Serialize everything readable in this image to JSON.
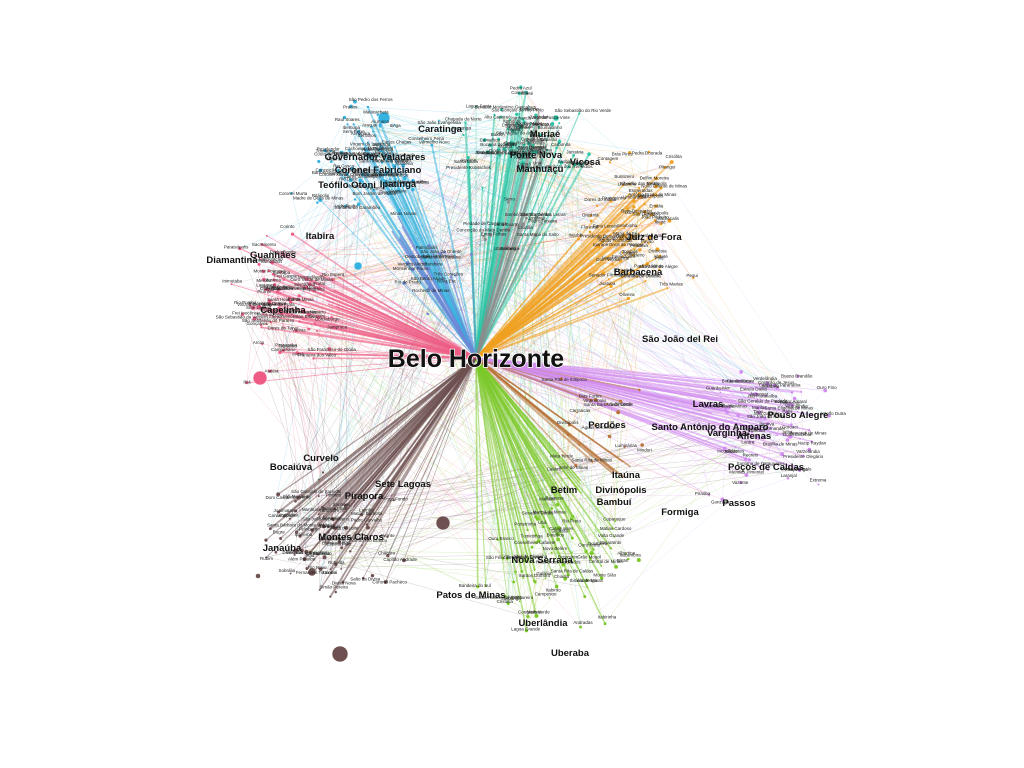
{
  "graph": {
    "hub": {
      "label": "Belo Horizonte"
    },
    "region_colors": {
      "cyan": "#36b2e0",
      "teal": "#2ec4a6",
      "orange": "#f0a020",
      "pink": "#ee5c85",
      "purple": "#d28df0",
      "green": "#7cc92a",
      "brown": "#6e5050",
      "gray": "#8c8c8c",
      "blue": "#6e86d6",
      "rust": "#b8733a"
    },
    "major_labels": [
      {
        "text": "Governador Valadares",
        "color": "cyan"
      },
      {
        "text": "Coronel Fabriciano",
        "color": "cyan"
      },
      {
        "text": "Ipatinga",
        "color": "cyan"
      },
      {
        "text": "Teófilo Otoni",
        "color": "cyan"
      },
      {
        "text": "Juiz de Fora",
        "color": "orange"
      },
      {
        "text": "Barbacena",
        "color": "orange"
      },
      {
        "text": "São João del Rei",
        "color": "orange"
      },
      {
        "text": "Muriaé",
        "color": "teal"
      },
      {
        "text": "Ponte Nova",
        "color": "teal"
      },
      {
        "text": "Manhuaçu",
        "color": "teal"
      },
      {
        "text": "Viçosa",
        "color": "teal"
      },
      {
        "text": "Caratinga",
        "color": "teal"
      },
      {
        "text": "Guanhães",
        "color": "pink"
      },
      {
        "text": "Capelinha",
        "color": "pink"
      },
      {
        "text": "Diamantina",
        "color": "pink"
      },
      {
        "text": "Curvelo",
        "color": "brown"
      },
      {
        "text": "Sete Lagoas",
        "color": "brown"
      },
      {
        "text": "Pirapora",
        "color": "brown"
      },
      {
        "text": "Montes Claros",
        "color": "brown"
      },
      {
        "text": "Bocaiúva",
        "color": "brown"
      },
      {
        "text": "Janaúba",
        "color": "brown"
      },
      {
        "text": "Itabira",
        "color": "pink"
      },
      {
        "text": "Betim",
        "color": "green"
      },
      {
        "text": "Divinópolis",
        "color": "green"
      },
      {
        "text": "Itaúna",
        "color": "green"
      },
      {
        "text": "Perdões",
        "color": "green"
      },
      {
        "text": "Bambuí",
        "color": "green"
      },
      {
        "text": "Formiga",
        "color": "green"
      },
      {
        "text": "Nova Serrana",
        "color": "green"
      },
      {
        "text": "Patos de Minas",
        "color": "green"
      },
      {
        "text": "Uberlândia",
        "color": "green"
      },
      {
        "text": "Uberaba",
        "color": "green"
      },
      {
        "text": "Lavras",
        "color": "purple"
      },
      {
        "text": "Varginha",
        "color": "purple"
      },
      {
        "text": "Alfenas",
        "color": "purple"
      },
      {
        "text": "Pouso Alegre",
        "color": "purple"
      },
      {
        "text": "Santo Antônio do Amparo",
        "color": "purple"
      },
      {
        "text": "Passos",
        "color": "purple"
      },
      {
        "text": "Poços de Caldas",
        "color": "purple"
      }
    ],
    "minor_labels": [
      "Mantena",
      "Santa Maria de Itabira",
      "Conselheiro Pena",
      "Aimorés",
      "Resplendor",
      "Nanuque",
      "Carlos Chagas",
      "Almenara",
      "Jequitinhonha",
      "Araçuaí",
      "Itaobim",
      "Pedra Azul",
      "Salinas",
      "Taiobeiras",
      "Rio Pardo de Minas",
      "Januária",
      "Manga",
      "São Francisco",
      "Unaí",
      "Paracatu",
      "João Pinheiro",
      "Buritizeiro",
      "Três Marias",
      "Abaeté",
      "Dores do Indaiá",
      "Luz",
      "Bom Despacho",
      "Pitangui",
      "Pará de Minas",
      "Oliveira",
      "Campo Belo",
      "Lagoa da Prata",
      "Arcos",
      "Piumhi",
      "Araxá",
      "Ibiá",
      "Sacramento",
      "Frutal",
      "Iturama",
      "Ituiutaba",
      "Monte Carmelo",
      "Patrocínio",
      "Coromandel",
      "Carmo do Paranaíba",
      "São Gotardo",
      "Rio Paranaíba",
      "Tiros",
      "Vazante",
      "Guarda-Mor",
      "Presidente Olegário",
      "Lagoa Grande",
      "Ouro Preto",
      "Mariana",
      "Itabirito",
      "Congonhas",
      "Conselheiro Lafaiete",
      "Ouro Branco",
      "Santos Dumont",
      "Ubá",
      "Cataguases",
      "Leopoldina",
      "Além Paraíba",
      "Visconde do Rio Branco",
      "Carangola",
      "Espera Feliz",
      "Manhumirim",
      "Lajinha",
      "Ipanema",
      "Inhapim",
      "Timóteo",
      "Santana do Paraíso",
      "João Monlevade",
      "Nova Era",
      "Itambé do Mato Dentro",
      "Conceição do Mato Dentro",
      "Serro",
      "Sabinópolis",
      "Virginópolis",
      "Peçanha",
      "São João Evangelista",
      "Malacacheta",
      "Itamarandiba",
      "Minas Novas",
      "Turmalina",
      "Santo Antônio do Itambé",
      "Gouveia",
      "Datas",
      "Couto de Magalhães de Minas",
      "Presidente Kubitschek",
      "Baldim",
      "Jaboticatubas",
      "Lagoa Santa",
      "Vespasiano",
      "Santa Luzia",
      "Sabará",
      "Caeté",
      "Nova Lima",
      "Brumadinho",
      "Ibirité",
      "Contagem",
      "Ribeirão das Neves",
      "Esmeraldas",
      "Igarapé",
      "Mateus Leme",
      "Juatuba",
      "Florestal",
      "Pequi",
      "Onça de Pitangui",
      "Papagaios",
      "Paraopeba",
      "Cordisburgo",
      "Inimutaba",
      "Corinto",
      "Lassance",
      "Várzea da Palma",
      "Jequitaí",
      "Francisco Dumont",
      "Engenheiro Navarro",
      "Coração de Jesus",
      "Brasília de Minas",
      "Mirabela",
      "Patis",
      "Japonvar",
      "Lontra",
      "São João da Ponte",
      "Varzelândia",
      "Verdelândia",
      "Jaíba",
      "Matias Cardoso",
      "Itacarambi",
      "Espinosa",
      "Mato Verde",
      "Porteirinha",
      "Riacho dos Machados",
      "Grão Mogol",
      "Itacambira",
      "Botumirim",
      "Cristália",
      "Josenópolis",
      "Padre Carvalho",
      "Fruta de Leite",
      "Novorizonte",
      "Rubelita",
      "Salto da Divisa",
      "Jacinto",
      "Rubim",
      "Joaíma",
      "Felisburgo",
      "Rio do Prado",
      "Palmópolis",
      "Bandeira",
      "Jordânia",
      "Santa Maria do Salto",
      "Divisópolis",
      "Mata Verde",
      "Águas Vermelhas",
      "Divisa Alegre",
      "Cachoeira de Pajeú",
      "Medina",
      "Comercinho",
      "Ponto dos Volantes",
      "Itinga",
      "Coronel Murta",
      "Virgem da Lapa",
      "Berilo",
      "Francisco Badaró",
      "Chapada do Norte",
      "Jenipapo de Minas",
      "Leme do Prado",
      "José Gonçalves de Minas",
      "Carbonita",
      "Senador Modestino Gonçalves",
      "Felício dos Santos",
      "São Gonçalo do Rio Preto",
      "Aricanduva",
      "Angelândia",
      "Setubinha",
      "Ladainha",
      "Poté",
      "Novo Oriente de Minas",
      "Pavão",
      "Crisólita",
      "Águas Formosas",
      "Bertópolis",
      "Umburatiba",
      "Machacalis",
      "Santa Helena de Minas",
      "Fronteira dos Vales",
      "Monte Formoso",
      "Ouro Verde de Minas",
      "Ataléia",
      "Frei Gaspar",
      "Itambacuri",
      "Campanário",
      "Jampruca",
      "Frei Inocêncio",
      "Marilac",
      "São Geraldo da Piedade",
      "Sardoá",
      "Coroaci",
      "Gonzaga",
      "Santa Efigênia de Minas",
      "Divinolândia de Minas",
      "Virgolândia",
      "Nacip Raydan",
      "Mendes Pimentel",
      "São Félix de Minas",
      "Central de Minas",
      "Itabirinha",
      "São José do Divino",
      "Nova Belém",
      "Cuparaque",
      "Goiabeira",
      "Alvarenga",
      "Tumiritinga",
      "Galiléia",
      "Divino das Laranjeiras",
      "Itanhomi",
      "Capitão Andrade",
      "Engenheiro Caldas",
      "Fernandes Tourinho",
      "Sobrália",
      "Tarumirim",
      "Dom Cavati",
      "Iapu",
      "Bugre",
      "São João do Oriente",
      "Vargem Alegre",
      "Entre Folhas",
      "Ubaporanga",
      "Piedade de Caratinga",
      "Santa Bárbara do Leste",
      "Santa Rita de Minas",
      "Imbé de Minas",
      "Vermelho Novo",
      "Raul Soares",
      "São Pedro dos Ferros",
      "Rio Casca",
      "Santa Cruz do Escalvado",
      "Sem-Peixe",
      "Dom Silvério",
      "Alvinópolis",
      "Rio Doce",
      "Barra Longa",
      "Acaiaca",
      "Diogo de Vasconcelos",
      "Piranga",
      "Porto Firme",
      "Teixeiras",
      "Coimbra",
      "Cajuri",
      "São Miguel do Anta",
      "Canaã",
      "Araponga",
      "Ervália",
      "Guiricema",
      "São Geraldo",
      "Tocantins",
      "Rodeiro",
      "Divinésia",
      "Senador Firmino",
      "Brás Pires",
      "Presidente Bernardes",
      "Senhora de Oliveira",
      "Lamim",
      "Rio Espera",
      "Cipotânea",
      "Alto Rio Doce",
      "Dores do Turvo",
      "Mercês",
      "Silveirânia",
      "Rio Pomba",
      "Tabuleiro",
      "Guarani",
      "Piraúba",
      "Astolfo Dutra",
      "Dona Euzébia",
      "Itamarati de Minas",
      "Santana de Cataguases",
      "Laranjal",
      "Palma",
      "Recreio",
      "Pirapetinga",
      "Estrela Dalva",
      "Volta Grande",
      "Santo Antônio do Aventureiro",
      "Argirita",
      "Maripá de Minas",
      "Guarará",
      "Bicas",
      "Mar de Espanha",
      "Chiador",
      "Senador Cortes",
      "Rio Preto",
      "Santa Bárbara do Monte Verde",
      "Belmiro Braga",
      "Simão Pereira",
      "Matias Barbosa",
      "Chácara",
      "Coronel Pacheco",
      "Goianá",
      "Rio Novo",
      "Piau",
      "São João Nepomuceno",
      "Descoberto",
      "Rochedo de Minas",
      "Pequeri",
      "Lima Duarte",
      "Pedro Teixeira",
      "Bias Fortes",
      "Santa Rita de Ibitipoca",
      "Ibertioga",
      "Santana do Garambéu",
      "Piedade do Rio Grande",
      "Madre de Deus de Minas",
      "Andrelândia",
      "Arantina",
      "Bom Jardim de Minas",
      "Seritinga",
      "Serranos",
      "Aiuruoca",
      "Carvalhos",
      "Liberdade",
      "Passa-Vinte",
      "Bocaina de Minas",
      "Alagoa",
      "Itamonte",
      "Itanhandu",
      "Pouso Alto",
      "São Sebastião do Rio Verde",
      "Virgínia",
      "Dom Viçoso",
      "Cristina",
      "Maria da Fé",
      "Pedralva",
      "São José do Alegre",
      "Itajubá",
      "Piranguinho",
      "Brazópolis",
      "Wenceslau Braz",
      "Delfim Moreira",
      "Marmelópolis",
      "Venceslau Brás",
      "Sapucaí-Mirim",
      "Gonçalves",
      "Paraisópolis",
      "Consolação",
      "Cambuí",
      "Córrego do Bom Jesus",
      "Estiva",
      "Tocos do Moji",
      "Senador Amaral",
      "Bueno Brandão",
      "Munhoz",
      "Toledo",
      "Extrema",
      "Itapeva",
      "Camanducaia",
      "Ouro Fino",
      "Inconfidentes",
      "Borda da Mata",
      "Jacutinga",
      "Monte Sião",
      "Albertina",
      "Andradas",
      "Ibitiúra de Minas",
      "Santa Rita de Caldas",
      "Caldas",
      "Bandeira do Sul",
      "Campestre",
      "Botelhos",
      "Cabo Verde",
      "Divisa Nova",
      "Serrania",
      "Machado",
      "Poço Fundo",
      "Carvalhópolis",
      "Turvolândia",
      "Cordislândia",
      "São Gonçalo do Sapucaí",
      "Elói Mendes",
      "Monsenhor Paulo",
      "Três Corações",
      "São Bento Abade",
      "São Thomé das Letras",
      "Cruzília",
      "Minduri",
      "Luminárias",
      "Carrancas",
      "Itutinga",
      "Nazareno",
      "Conceição da Barra de Minas",
      "Ritápolis",
      "Coronel Xavier Chaves",
      "Tiradentes",
      "Prados",
      "Dores de Campos",
      "Barroso",
      "Resende Costa",
      "Lagoa Dourada",
      "Entre Rios de Minas",
      "Casa Grande",
      "Caranaíba",
      "Carandaí",
      "Capela Nova",
      "Senhora dos Remédios",
      "Alto Caparaó",
      "Caparaó",
      "Divino",
      "Orizânia",
      "Fervedouro",
      "Pedra Dourada",
      "Tombos",
      "Faria Lemos",
      "Eugenópolis",
      "Antônio Prado de Minas",
      "Patrocínio do Muriaé",
      "Barão de Monte Alto",
      "Miraí",
      "São Sebastião da Vargem Alegre",
      "Rosário da Limeira",
      "São Francisco do Glória",
      "Vieiras",
      "Pedra Bonita",
      "Abre Campo",
      "São Sebastião do Paraíso",
      "Sete Lagoas"
    ]
  }
}
